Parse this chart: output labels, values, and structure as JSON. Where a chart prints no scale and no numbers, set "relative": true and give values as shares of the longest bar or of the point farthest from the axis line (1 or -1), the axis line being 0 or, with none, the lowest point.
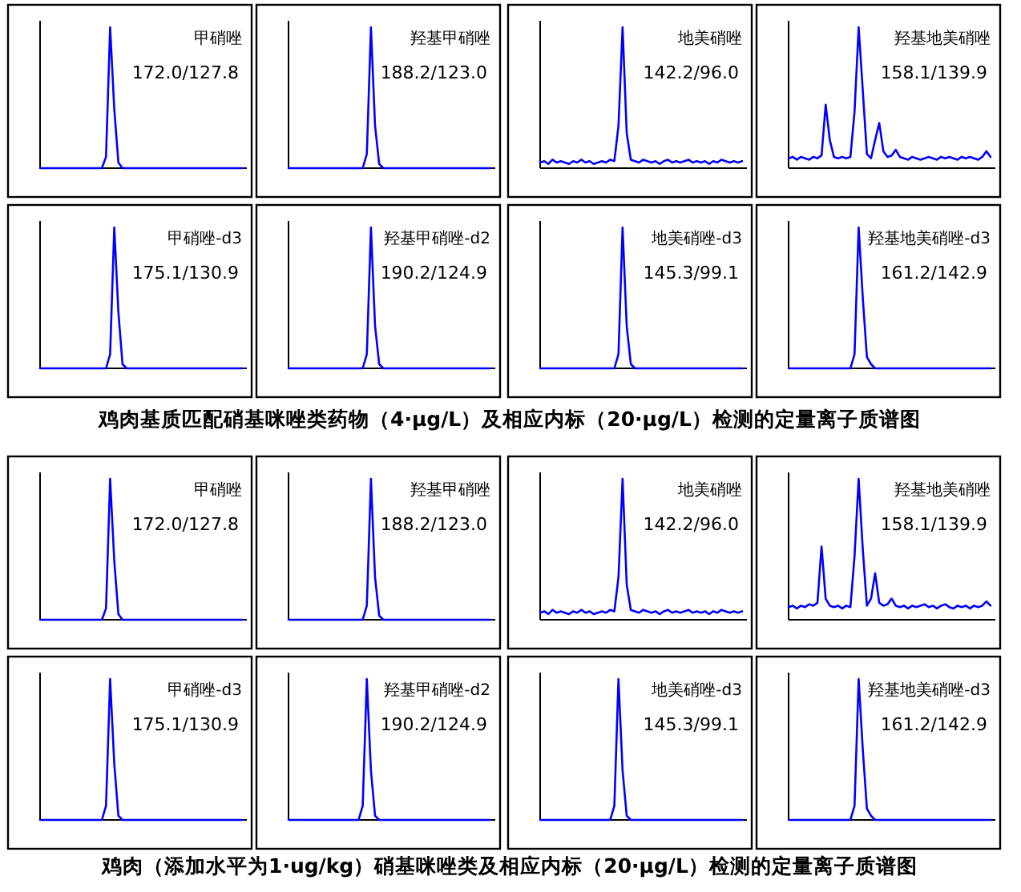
{
  "chart_data": [
    {
      "type": "line",
      "relative": true,
      "categories": [
        null,
        null,
        null,
        null,
        null,
        null,
        null,
        null,
        null,
        null,
        null,
        null,
        null,
        null,
        null,
        null,
        null,
        null,
        null,
        null,
        null,
        null,
        null,
        null,
        null,
        null,
        null,
        null,
        null,
        null,
        null,
        null,
        null,
        null,
        null,
        null,
        null,
        null,
        null,
        null,
        null,
        null,
        null,
        null,
        null,
        null,
        null,
        null,
        null,
        null
      ],
      "series": [
        {
          "color": "#0000ff",
          "values": [
            0,
            0,
            0,
            0,
            0,
            0,
            0,
            0,
            0,
            0,
            0,
            0,
            0,
            0,
            0,
            0,
            0.08,
            1,
            0.42,
            0.04,
            0,
            0,
            0,
            0,
            0,
            0,
            0,
            0,
            0,
            0,
            0,
            0,
            0,
            0,
            0,
            0,
            0,
            0,
            0,
            0,
            0,
            0,
            0,
            0,
            0,
            0,
            0,
            0,
            0,
            0
          ]
        }
      ],
      "annotations": [
        "甲硝唑",
        "172.0/127.8"
      ]
    },
    {
      "type": "line",
      "relative": true,
      "categories": [
        null,
        null,
        null,
        null,
        null,
        null,
        null,
        null,
        null,
        null,
        null,
        null,
        null,
        null,
        null,
        null,
        null,
        null,
        null,
        null,
        null,
        null,
        null,
        null,
        null,
        null,
        null,
        null,
        null,
        null,
        null,
        null,
        null,
        null,
        null,
        null,
        null,
        null,
        null,
        null,
        null,
        null,
        null,
        null,
        null,
        null,
        null,
        null,
        null,
        null
      ],
      "series": [
        {
          "color": "#0000ff",
          "values": [
            0,
            0,
            0,
            0,
            0,
            0,
            0,
            0,
            0,
            0,
            0,
            0,
            0,
            0,
            0,
            0,
            0,
            0,
            0,
            0.1,
            1,
            0.3,
            0.03,
            0,
            0,
            0,
            0,
            0,
            0,
            0,
            0,
            0,
            0,
            0,
            0,
            0,
            0,
            0,
            0,
            0,
            0,
            0,
            0,
            0,
            0,
            0,
            0,
            0,
            0,
            0
          ]
        }
      ],
      "annotations": [
        "羟基甲硝唑",
        "188.2/123.0"
      ]
    },
    {
      "type": "line",
      "relative": true,
      "categories": [
        null,
        null,
        null,
        null,
        null,
        null,
        null,
        null,
        null,
        null,
        null,
        null,
        null,
        null,
        null,
        null,
        null,
        null,
        null,
        null,
        null,
        null,
        null,
        null,
        null,
        null,
        null,
        null,
        null,
        null,
        null,
        null,
        null,
        null,
        null,
        null,
        null,
        null,
        null,
        null,
        null,
        null,
        null,
        null,
        null,
        null,
        null,
        null,
        null,
        null
      ],
      "series": [
        {
          "color": "#0000ff",
          "values": [
            0.04,
            0.05,
            0.03,
            0.06,
            0.04,
            0.05,
            0.04,
            0.03,
            0.05,
            0.04,
            0.06,
            0.04,
            0.05,
            0.03,
            0.04,
            0.05,
            0.04,
            0.06,
            0.05,
            0.3,
            1,
            0.25,
            0.06,
            0.05,
            0.04,
            0.06,
            0.05,
            0.04,
            0.05,
            0.03,
            0.05,
            0.06,
            0.04,
            0.05,
            0.04,
            0.05,
            0.06,
            0.04,
            0.05,
            0.04,
            0.05,
            0.03,
            0.05,
            0.04,
            0.06,
            0.05,
            0.04,
            0.05,
            0.04,
            0.05
          ]
        }
      ],
      "annotations": [
        "地美硝唑",
        "142.2/96.0"
      ]
    },
    {
      "type": "line",
      "relative": true,
      "categories": [
        null,
        null,
        null,
        null,
        null,
        null,
        null,
        null,
        null,
        null,
        null,
        null,
        null,
        null,
        null,
        null,
        null,
        null,
        null,
        null,
        null,
        null,
        null,
        null,
        null,
        null,
        null,
        null,
        null,
        null,
        null,
        null,
        null,
        null,
        null,
        null,
        null,
        null,
        null,
        null,
        null,
        null,
        null,
        null,
        null,
        null,
        null,
        null,
        null,
        null
      ],
      "series": [
        {
          "color": "#0000ff",
          "values": [
            0.07,
            0.08,
            0.06,
            0.08,
            0.07,
            0.06,
            0.08,
            0.07,
            0.09,
            0.45,
            0.2,
            0.08,
            0.07,
            0.08,
            0.07,
            0.08,
            0.4,
            1,
            0.55,
            0.1,
            0.07,
            0.2,
            0.32,
            0.12,
            0.08,
            0.09,
            0.13,
            0.08,
            0.07,
            0.06,
            0.08,
            0.07,
            0.06,
            0.07,
            0.08,
            0.07,
            0.06,
            0.08,
            0.07,
            0.08,
            0.07,
            0.06,
            0.08,
            0.07,
            0.08,
            0.07,
            0.06,
            0.08,
            0.12,
            0.08
          ]
        }
      ],
      "annotations": [
        "羟基地美硝唑",
        "158.1/139.9"
      ]
    },
    {
      "type": "line",
      "relative": true,
      "categories": [
        null,
        null,
        null,
        null,
        null,
        null,
        null,
        null,
        null,
        null,
        null,
        null,
        null,
        null,
        null,
        null,
        null,
        null,
        null,
        null,
        null,
        null,
        null,
        null,
        null,
        null,
        null,
        null,
        null,
        null,
        null,
        null,
        null,
        null,
        null,
        null,
        null,
        null,
        null,
        null,
        null,
        null,
        null,
        null,
        null,
        null,
        null,
        null,
        null,
        null
      ],
      "series": [
        {
          "color": "#0000ff",
          "values": [
            0,
            0,
            0,
            0,
            0,
            0,
            0,
            0,
            0,
            0,
            0,
            0,
            0,
            0,
            0,
            0,
            0,
            0.1,
            1,
            0.4,
            0.03,
            0,
            0,
            0,
            0,
            0,
            0,
            0,
            0,
            0,
            0,
            0,
            0,
            0,
            0,
            0,
            0,
            0,
            0,
            0,
            0,
            0,
            0,
            0,
            0,
            0,
            0,
            0,
            0,
            0
          ]
        }
      ],
      "annotations": [
        "甲硝唑-d3",
        "175.1/130.9"
      ]
    },
    {
      "type": "line",
      "relative": true,
      "categories": [
        null,
        null,
        null,
        null,
        null,
        null,
        null,
        null,
        null,
        null,
        null,
        null,
        null,
        null,
        null,
        null,
        null,
        null,
        null,
        null,
        null,
        null,
        null,
        null,
        null,
        null,
        null,
        null,
        null,
        null,
        null,
        null,
        null,
        null,
        null,
        null,
        null,
        null,
        null,
        null,
        null,
        null,
        null,
        null,
        null,
        null,
        null,
        null,
        null,
        null
      ],
      "series": [
        {
          "color": "#0000ff",
          "values": [
            0,
            0,
            0,
            0,
            0,
            0,
            0,
            0,
            0,
            0,
            0,
            0,
            0,
            0,
            0,
            0,
            0,
            0,
            0,
            0.1,
            1,
            0.3,
            0.03,
            0,
            0,
            0,
            0,
            0,
            0,
            0,
            0,
            0,
            0,
            0,
            0,
            0,
            0,
            0,
            0,
            0,
            0,
            0,
            0,
            0,
            0,
            0,
            0,
            0,
            0,
            0
          ]
        }
      ],
      "annotations": [
        "羟基甲硝唑-d2",
        "190.2/124.9"
      ]
    },
    {
      "type": "line",
      "relative": true,
      "categories": [
        null,
        null,
        null,
        null,
        null,
        null,
        null,
        null,
        null,
        null,
        null,
        null,
        null,
        null,
        null,
        null,
        null,
        null,
        null,
        null,
        null,
        null,
        null,
        null,
        null,
        null,
        null,
        null,
        null,
        null,
        null,
        null,
        null,
        null,
        null,
        null,
        null,
        null,
        null,
        null,
        null,
        null,
        null,
        null,
        null,
        null,
        null,
        null,
        null,
        null
      ],
      "series": [
        {
          "color": "#0000ff",
          "values": [
            0,
            0,
            0,
            0,
            0,
            0,
            0,
            0,
            0,
            0,
            0,
            0,
            0,
            0,
            0,
            0,
            0,
            0,
            0,
            0.1,
            1,
            0.3,
            0.03,
            0,
            0,
            0,
            0,
            0,
            0,
            0,
            0,
            0,
            0,
            0,
            0,
            0,
            0,
            0,
            0,
            0,
            0,
            0,
            0,
            0,
            0,
            0,
            0,
            0,
            0,
            0
          ]
        }
      ],
      "annotations": [
        "地美硝唑-d3",
        "145.3/99.1"
      ]
    },
    {
      "type": "line",
      "relative": true,
      "categories": [
        null,
        null,
        null,
        null,
        null,
        null,
        null,
        null,
        null,
        null,
        null,
        null,
        null,
        null,
        null,
        null,
        null,
        null,
        null,
        null,
        null,
        null,
        null,
        null,
        null,
        null,
        null,
        null,
        null,
        null,
        null,
        null,
        null,
        null,
        null,
        null,
        null,
        null,
        null,
        null,
        null,
        null,
        null,
        null,
        null,
        null,
        null,
        null,
        null,
        null
      ],
      "series": [
        {
          "color": "#0000ff",
          "values": [
            0,
            0,
            0,
            0,
            0,
            0,
            0,
            0,
            0,
            0,
            0,
            0,
            0,
            0,
            0,
            0,
            0.1,
            1,
            0.5,
            0.08,
            0.03,
            0,
            0,
            0,
            0,
            0,
            0,
            0,
            0,
            0,
            0,
            0,
            0,
            0,
            0,
            0,
            0,
            0,
            0,
            0,
            0,
            0,
            0,
            0,
            0,
            0,
            0,
            0,
            0,
            0
          ]
        }
      ],
      "annotations": [
        "羟基地美硝唑-d3",
        "161.2/142.9",
        "鸡肉基质匹配硝基咪唑类药物（4·μg/L）及相应内标（20·μg/L）检测的定量离子质谱图"
      ]
    },
    {
      "type": "line",
      "relative": true,
      "categories": [
        null,
        null,
        null,
        null,
        null,
        null,
        null,
        null,
        null,
        null,
        null,
        null,
        null,
        null,
        null,
        null,
        null,
        null,
        null,
        null,
        null,
        null,
        null,
        null,
        null,
        null,
        null,
        null,
        null,
        null,
        null,
        null,
        null,
        null,
        null,
        null,
        null,
        null,
        null,
        null,
        null,
        null,
        null,
        null,
        null,
        null,
        null,
        null,
        null,
        null
      ],
      "series": [
        {
          "color": "#0000ff",
          "values": [
            0,
            0,
            0,
            0,
            0,
            0,
            0,
            0,
            0,
            0,
            0,
            0,
            0,
            0,
            0,
            0,
            0.08,
            1,
            0.42,
            0.04,
            0,
            0,
            0,
            0,
            0,
            0,
            0,
            0,
            0,
            0,
            0,
            0,
            0,
            0,
            0,
            0,
            0,
            0,
            0,
            0,
            0,
            0,
            0,
            0,
            0,
            0,
            0,
            0,
            0,
            0
          ]
        }
      ],
      "annotations": [
        "甲硝唑",
        "172.0/127.8"
      ]
    },
    {
      "type": "line",
      "relative": true,
      "categories": [
        null,
        null,
        null,
        null,
        null,
        null,
        null,
        null,
        null,
        null,
        null,
        null,
        null,
        null,
        null,
        null,
        null,
        null,
        null,
        null,
        null,
        null,
        null,
        null,
        null,
        null,
        null,
        null,
        null,
        null,
        null,
        null,
        null,
        null,
        null,
        null,
        null,
        null,
        null,
        null,
        null,
        null,
        null,
        null,
        null,
        null,
        null,
        null,
        null,
        null
      ],
      "series": [
        {
          "color": "#0000ff",
          "values": [
            0,
            0,
            0,
            0,
            0,
            0,
            0,
            0,
            0,
            0,
            0,
            0,
            0,
            0,
            0,
            0,
            0,
            0,
            0,
            0.1,
            1,
            0.3,
            0.03,
            0,
            0,
            0,
            0,
            0,
            0,
            0,
            0,
            0,
            0,
            0,
            0,
            0,
            0,
            0,
            0,
            0,
            0,
            0,
            0,
            0,
            0,
            0,
            0,
            0,
            0,
            0
          ]
        }
      ],
      "annotations": [
        "羟基甲硝唑",
        "188.2/123.0"
      ]
    },
    {
      "type": "line",
      "relative": true,
      "categories": [
        null,
        null,
        null,
        null,
        null,
        null,
        null,
        null,
        null,
        null,
        null,
        null,
        null,
        null,
        null,
        null,
        null,
        null,
        null,
        null,
        null,
        null,
        null,
        null,
        null,
        null,
        null,
        null,
        null,
        null,
        null,
        null,
        null,
        null,
        null,
        null,
        null,
        null,
        null,
        null,
        null,
        null,
        null,
        null,
        null,
        null,
        null,
        null,
        null,
        null
      ],
      "series": [
        {
          "color": "#0000ff",
          "values": [
            0.05,
            0.06,
            0.04,
            0.07,
            0.05,
            0.06,
            0.05,
            0.04,
            0.06,
            0.05,
            0.07,
            0.05,
            0.06,
            0.04,
            0.05,
            0.06,
            0.05,
            0.07,
            0.06,
            0.3,
            1,
            0.25,
            0.07,
            0.06,
            0.05,
            0.07,
            0.06,
            0.05,
            0.06,
            0.04,
            0.06,
            0.07,
            0.05,
            0.06,
            0.05,
            0.06,
            0.07,
            0.05,
            0.06,
            0.05,
            0.06,
            0.04,
            0.06,
            0.05,
            0.07,
            0.06,
            0.05,
            0.06,
            0.05,
            0.06
          ]
        }
      ],
      "annotations": [
        "地美硝唑",
        "142.2/96.0"
      ]
    },
    {
      "type": "line",
      "relative": true,
      "categories": [
        null,
        null,
        null,
        null,
        null,
        null,
        null,
        null,
        null,
        null,
        null,
        null,
        null,
        null,
        null,
        null,
        null,
        null,
        null,
        null,
        null,
        null,
        null,
        null,
        null,
        null,
        null,
        null,
        null,
        null,
        null,
        null,
        null,
        null,
        null,
        null,
        null,
        null,
        null,
        null,
        null,
        null,
        null,
        null,
        null,
        null,
        null,
        null,
        null,
        null
      ],
      "series": [
        {
          "color": "#0000ff",
          "values": [
            0.09,
            0.1,
            0.08,
            0.1,
            0.09,
            0.11,
            0.1,
            0.12,
            0.52,
            0.15,
            0.1,
            0.09,
            0.1,
            0.08,
            0.1,
            0.09,
            0.45,
            1,
            0.5,
            0.1,
            0.15,
            0.33,
            0.12,
            0.1,
            0.11,
            0.15,
            0.1,
            0.09,
            0.1,
            0.08,
            0.1,
            0.09,
            0.1,
            0.11,
            0.09,
            0.1,
            0.08,
            0.1,
            0.11,
            0.09,
            0.08,
            0.1,
            0.09,
            0.1,
            0.08,
            0.1,
            0.09,
            0.1,
            0.13,
            0.1
          ]
        }
      ],
      "annotations": [
        "羟基地美硝唑",
        "158.1/139.9"
      ]
    },
    {
      "type": "line",
      "relative": true,
      "categories": [
        null,
        null,
        null,
        null,
        null,
        null,
        null,
        null,
        null,
        null,
        null,
        null,
        null,
        null,
        null,
        null,
        null,
        null,
        null,
        null,
        null,
        null,
        null,
        null,
        null,
        null,
        null,
        null,
        null,
        null,
        null,
        null,
        null,
        null,
        null,
        null,
        null,
        null,
        null,
        null,
        null,
        null,
        null,
        null,
        null,
        null,
        null,
        null,
        null,
        null
      ],
      "series": [
        {
          "color": "#0000ff",
          "values": [
            0,
            0,
            0,
            0,
            0,
            0,
            0,
            0,
            0,
            0,
            0,
            0,
            0,
            0,
            0,
            0,
            0.1,
            1,
            0.4,
            0.03,
            0,
            0,
            0,
            0,
            0,
            0,
            0,
            0,
            0,
            0,
            0,
            0,
            0,
            0,
            0,
            0,
            0,
            0,
            0,
            0,
            0,
            0,
            0,
            0,
            0,
            0,
            0,
            0,
            0,
            0
          ]
        }
      ],
      "annotations": [
        "甲硝唑-d3",
        "175.1/130.9"
      ]
    },
    {
      "type": "line",
      "relative": true,
      "categories": [
        null,
        null,
        null,
        null,
        null,
        null,
        null,
        null,
        null,
        null,
        null,
        null,
        null,
        null,
        null,
        null,
        null,
        null,
        null,
        null,
        null,
        null,
        null,
        null,
        null,
        null,
        null,
        null,
        null,
        null,
        null,
        null,
        null,
        null,
        null,
        null,
        null,
        null,
        null,
        null,
        null,
        null,
        null,
        null,
        null,
        null,
        null,
        null,
        null,
        null
      ],
      "series": [
        {
          "color": "#0000ff",
          "values": [
            0,
            0,
            0,
            0,
            0,
            0,
            0,
            0,
            0,
            0,
            0,
            0,
            0,
            0,
            0,
            0,
            0,
            0,
            0.1,
            1,
            0.35,
            0.03,
            0,
            0,
            0,
            0,
            0,
            0,
            0,
            0,
            0,
            0,
            0,
            0,
            0,
            0,
            0,
            0,
            0,
            0,
            0,
            0,
            0,
            0,
            0,
            0,
            0,
            0,
            0,
            0
          ]
        }
      ],
      "annotations": [
        "羟基甲硝唑-d2",
        "190.2/124.9"
      ]
    },
    {
      "type": "line",
      "relative": true,
      "categories": [
        null,
        null,
        null,
        null,
        null,
        null,
        null,
        null,
        null,
        null,
        null,
        null,
        null,
        null,
        null,
        null,
        null,
        null,
        null,
        null,
        null,
        null,
        null,
        null,
        null,
        null,
        null,
        null,
        null,
        null,
        null,
        null,
        null,
        null,
        null,
        null,
        null,
        null,
        null,
        null,
        null,
        null,
        null,
        null,
        null,
        null,
        null,
        null,
        null,
        null
      ],
      "series": [
        {
          "color": "#0000ff",
          "values": [
            0,
            0,
            0,
            0,
            0,
            0,
            0,
            0,
            0,
            0,
            0,
            0,
            0,
            0,
            0,
            0,
            0,
            0,
            0.1,
            1,
            0.35,
            0.03,
            0,
            0,
            0,
            0,
            0,
            0,
            0,
            0,
            0,
            0,
            0,
            0,
            0,
            0,
            0,
            0,
            0,
            0,
            0,
            0,
            0,
            0,
            0,
            0,
            0,
            0,
            0,
            0
          ]
        }
      ],
      "annotations": [
        "地美硝唑-d3",
        "145.3/99.1"
      ]
    },
    {
      "type": "line",
      "relative": true,
      "categories": [
        null,
        null,
        null,
        null,
        null,
        null,
        null,
        null,
        null,
        null,
        null,
        null,
        null,
        null,
        null,
        null,
        null,
        null,
        null,
        null,
        null,
        null,
        null,
        null,
        null,
        null,
        null,
        null,
        null,
        null,
        null,
        null,
        null,
        null,
        null,
        null,
        null,
        null,
        null,
        null,
        null,
        null,
        null,
        null,
        null,
        null,
        null,
        null,
        null,
        null
      ],
      "series": [
        {
          "color": "#0000ff",
          "values": [
            0,
            0,
            0,
            0,
            0,
            0,
            0,
            0,
            0,
            0,
            0,
            0,
            0,
            0,
            0,
            0,
            0.1,
            1,
            0.5,
            0.08,
            0.03,
            0,
            0,
            0,
            0,
            0,
            0,
            0,
            0,
            0,
            0,
            0,
            0,
            0,
            0,
            0,
            0,
            0,
            0,
            0,
            0,
            0,
            0,
            0,
            0,
            0,
            0,
            0,
            0,
            0
          ]
        }
      ],
      "annotations": [
        "羟基地美硝唑-d3",
        "161.2/142.9",
        "鸡肉（添加水平为1·ug/kg）硝基咪唑类及相应内标（20·μg/L）检测的定量离子质谱图"
      ]
    }
  ]
}
